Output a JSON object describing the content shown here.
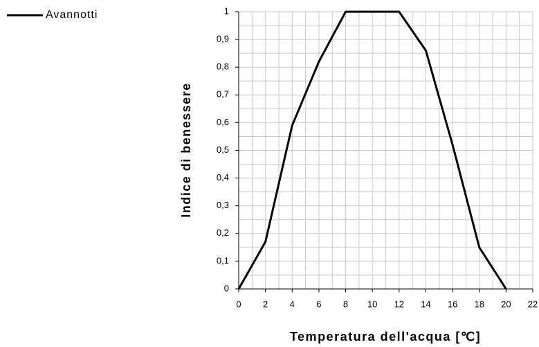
{
  "chart_data": {
    "type": "line",
    "xlabel": "Temperatura dell'acqua [℃]",
    "ylabel": "Indice di benessere",
    "x": [
      0,
      2,
      4,
      6,
      8,
      10,
      12,
      14,
      16,
      18,
      20
    ],
    "series": [
      {
        "name": "Avannotti",
        "color": "#000000",
        "values": [
          0,
          0.17,
          0.59,
          0.82,
          1,
          1,
          1,
          0.86,
          0.52,
          0.15,
          0
        ]
      }
    ],
    "xlim": [
      0,
      22
    ],
    "xticks": [
      0,
      2,
      4,
      6,
      8,
      10,
      12,
      14,
      16,
      18,
      20,
      22
    ],
    "ylim": [
      0,
      1
    ],
    "yticks": [
      0,
      {
        "value": 0.1,
        "label": "0,1"
      },
      {
        "value": 0.2,
        "label": "0,2"
      },
      {
        "value": 0.3,
        "label": "0,3"
      },
      {
        "value": 0.4,
        "label": "0,4"
      },
      {
        "value": 0.5,
        "label": "0,5"
      },
      {
        "value": 0.6,
        "label": "0,6"
      },
      {
        "value": 0.7,
        "label": "0,7"
      },
      {
        "value": 0.8,
        "label": "0,8"
      },
      {
        "value": 0.9,
        "label": "0,9"
      },
      1
    ],
    "grid": true,
    "legend": "top-left"
  }
}
